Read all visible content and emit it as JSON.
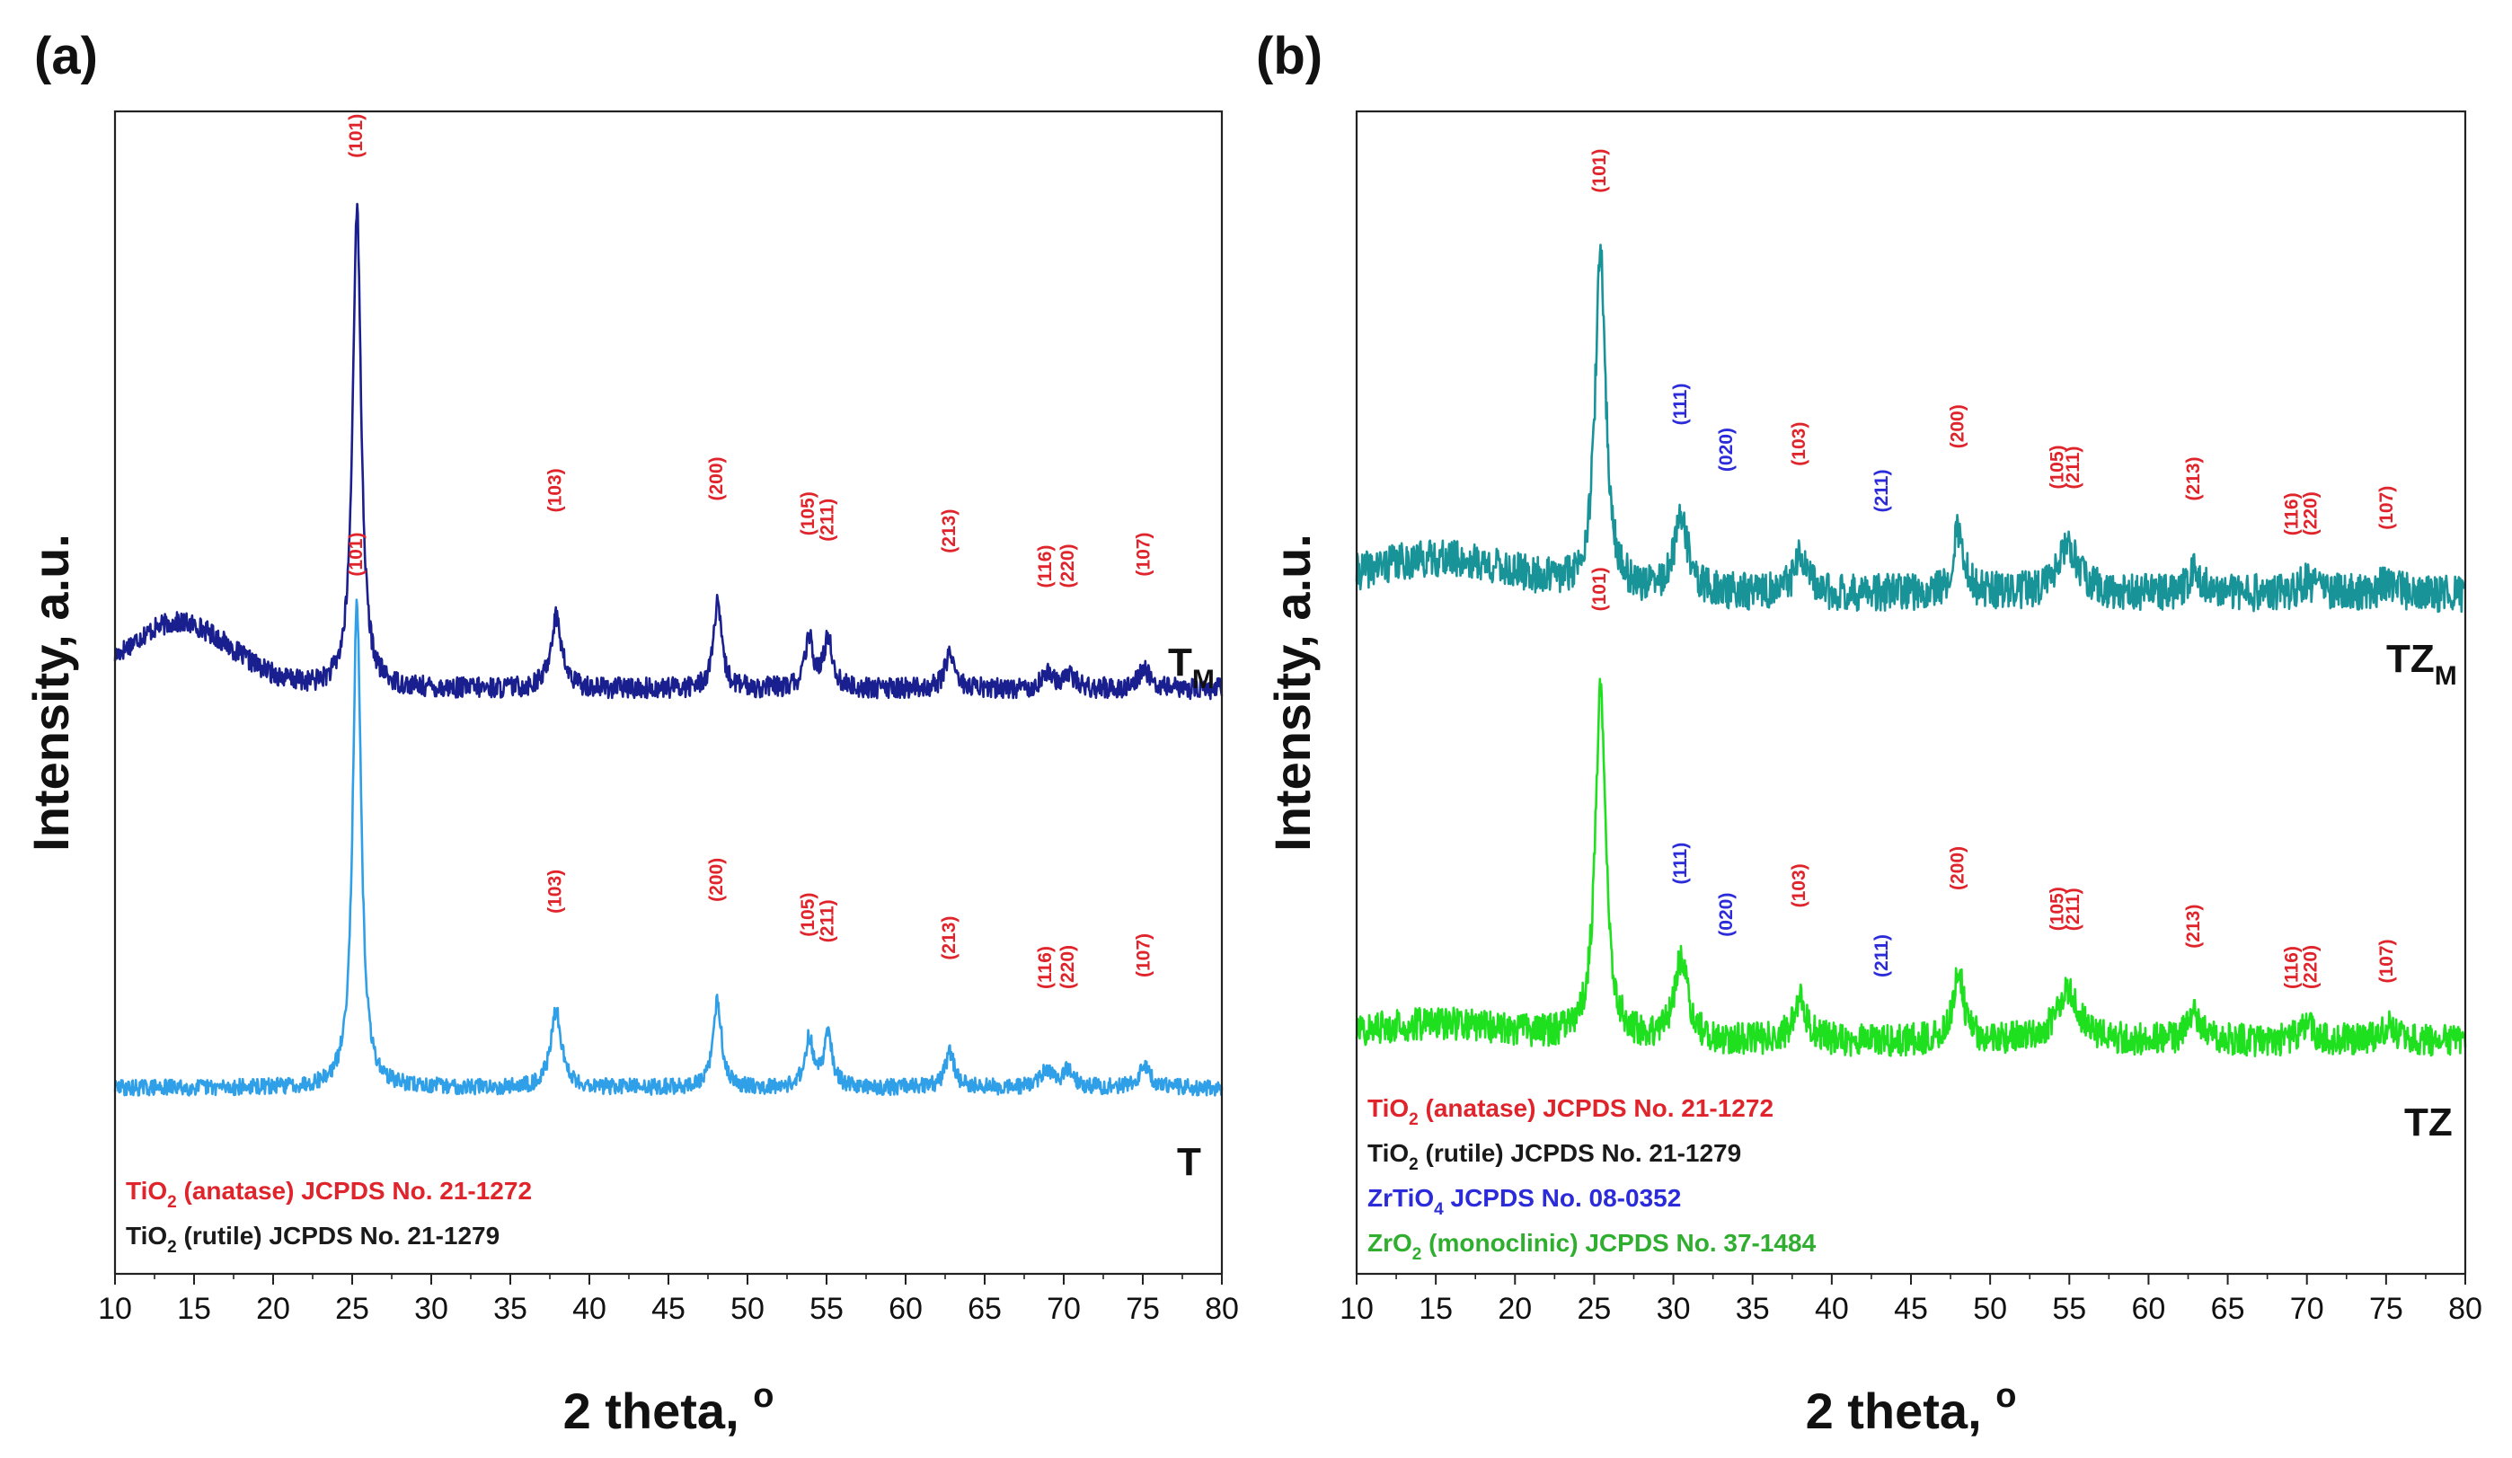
{
  "chart_data": [
    {
      "type": "line",
      "panel_label": "(a)",
      "xlabel": "2 theta, ",
      "xlabel_unit": "o",
      "ylabel": "Intensity, a.u.",
      "xlim": [
        10,
        80
      ],
      "ylim": [
        0,
        1
      ],
      "x_ticks": [
        10,
        15,
        20,
        25,
        30,
        35,
        40,
        45,
        50,
        55,
        60,
        65,
        70,
        75,
        80
      ],
      "y_ticks": [],
      "grid": false,
      "series": [
        {
          "name": "T",
          "label_main": "T",
          "label_sub": "M",
          "color": "#1a1f8f",
          "baseline": 0.503,
          "bump": {
            "center": 14,
            "width": 3.4,
            "height": 0.057
          },
          "noise": 0.009,
          "seed": 17,
          "peaks": [
            {
              "x": 25.3,
              "h": 0.415,
              "w": 0.32
            },
            {
              "x": 37.9,
              "h": 0.062,
              "w": 0.42
            },
            {
              "x": 48.1,
              "h": 0.072,
              "w": 0.32
            },
            {
              "x": 53.9,
              "h": 0.042,
              "w": 0.32
            },
            {
              "x": 55.1,
              "h": 0.044,
              "w": 0.32
            },
            {
              "x": 62.8,
              "h": 0.032,
              "w": 0.36
            },
            {
              "x": 68.9,
              "h": 0.013,
              "w": 0.42
            },
            {
              "x": 70.3,
              "h": 0.014,
              "w": 0.42
            },
            {
              "x": 75.1,
              "h": 0.017,
              "w": 0.42
            }
          ]
        },
        {
          "name": "T",
          "label_main": "T",
          "label_sub": "",
          "color": "#2f9fe8",
          "baseline": 0.16,
          "bump": {
            "center": 14,
            "width": 3,
            "height": 0.0
          },
          "noise": 0.007,
          "seed": 29,
          "peaks": [
            {
              "x": 25.3,
              "h": 0.415,
              "w": 0.32
            },
            {
              "x": 37.9,
              "h": 0.065,
              "w": 0.42
            },
            {
              "x": 48.1,
              "h": 0.075,
              "w": 0.32
            },
            {
              "x": 53.9,
              "h": 0.042,
              "w": 0.32
            },
            {
              "x": 55.1,
              "h": 0.044,
              "w": 0.32
            },
            {
              "x": 62.8,
              "h": 0.03,
              "w": 0.36
            },
            {
              "x": 68.9,
              "h": 0.015,
              "w": 0.42
            },
            {
              "x": 70.3,
              "h": 0.015,
              "w": 0.42
            },
            {
              "x": 75.1,
              "h": 0.018,
              "w": 0.42
            }
          ]
        }
      ],
      "annotations": [
        {
          "text": "(101)",
          "x": 25.3,
          "y": 0.96,
          "color": "#e0242b"
        },
        {
          "text": "(103)",
          "x": 37.9,
          "y": 0.655,
          "color": "#e0242b"
        },
        {
          "text": "(200)",
          "x": 48.1,
          "y": 0.665,
          "color": "#e0242b"
        },
        {
          "text": "(105)",
          "x": 53.9,
          "y": 0.635,
          "color": "#e0242b"
        },
        {
          "text": "(211)",
          "x": 55.1,
          "y": 0.63,
          "color": "#e0242b"
        },
        {
          "text": "(213)",
          "x": 62.8,
          "y": 0.62,
          "color": "#e0242b"
        },
        {
          "text": "(116)",
          "x": 68.9,
          "y": 0.59,
          "color": "#e0242b"
        },
        {
          "text": "(220)",
          "x": 70.3,
          "y": 0.59,
          "color": "#e0242b"
        },
        {
          "text": "(107)",
          "x": 75.1,
          "y": 0.6,
          "color": "#e0242b"
        },
        {
          "text": "(101)",
          "x": 25.3,
          "y": 0.6,
          "color": "#e0242b"
        },
        {
          "text": "(103)",
          "x": 37.9,
          "y": 0.31,
          "color": "#e0242b"
        },
        {
          "text": "(200)",
          "x": 48.1,
          "y": 0.32,
          "color": "#e0242b"
        },
        {
          "text": "(105)",
          "x": 53.9,
          "y": 0.29,
          "color": "#e0242b"
        },
        {
          "text": "(211)",
          "x": 55.1,
          "y": 0.285,
          "color": "#e0242b"
        },
        {
          "text": "(213)",
          "x": 62.8,
          "y": 0.27,
          "color": "#e0242b"
        },
        {
          "text": "(116)",
          "x": 68.9,
          "y": 0.245,
          "color": "#e0242b"
        },
        {
          "text": "(220)",
          "x": 70.3,
          "y": 0.245,
          "color": "#e0242b"
        },
        {
          "text": "(107)",
          "x": 75.1,
          "y": 0.255,
          "color": "#e0242b"
        }
      ],
      "legend": [
        {
          "pre": "TiO",
          "sub": "2",
          "post": " (anatase) JCPDS No. 21-1272",
          "color": "#e0242b"
        },
        {
          "pre": "TiO",
          "sub": "2",
          "post": " (rutile) JCPDS No. 21-1279",
          "color": "#1a1a1a"
        }
      ]
    },
    {
      "type": "line",
      "panel_label": "(b)",
      "xlabel": "2 theta, ",
      "xlabel_unit": "o",
      "ylabel": "Intensity, a.u.",
      "xlim": [
        10,
        80
      ],
      "ylim": [
        0,
        1
      ],
      "x_ticks": [
        10,
        15,
        20,
        25,
        30,
        35,
        40,
        45,
        50,
        55,
        60,
        65,
        70,
        75,
        80
      ],
      "y_ticks": [],
      "grid": false,
      "series": [
        {
          "name": "TZ",
          "label_main": "TZ",
          "label_sub": "M",
          "color": "#189499",
          "baseline": 0.585,
          "bump": {
            "center": 15,
            "width": 5,
            "height": 0.03
          },
          "noise": 0.016,
          "seed": 41,
          "peaks": [
            {
              "x": 25.4,
              "h": 0.29,
              "w": 0.4
            },
            {
              "x": 30.5,
              "h": 0.065,
              "w": 0.5
            },
            {
              "x": 38.0,
              "h": 0.03,
              "w": 0.5
            },
            {
              "x": 48.0,
              "h": 0.055,
              "w": 0.4
            },
            {
              "x": 54.9,
              "h": 0.04,
              "w": 0.8
            },
            {
              "x": 62.9,
              "h": 0.02,
              "w": 0.5
            },
            {
              "x": 70.0,
              "h": 0.01,
              "w": 0.6
            },
            {
              "x": 75.1,
              "h": 0.01,
              "w": 0.6
            }
          ]
        },
        {
          "name": "TZ",
          "label_main": "TZ",
          "label_sub": "",
          "color": "#1ee01e",
          "baseline": 0.2,
          "bump": {
            "center": 15,
            "width": 5,
            "height": 0.015
          },
          "noise": 0.014,
          "seed": 57,
          "peaks": [
            {
              "x": 25.4,
              "h": 0.3,
              "w": 0.4
            },
            {
              "x": 30.5,
              "h": 0.07,
              "w": 0.5
            },
            {
              "x": 38.0,
              "h": 0.035,
              "w": 0.5
            },
            {
              "x": 48.0,
              "h": 0.06,
              "w": 0.4
            },
            {
              "x": 54.9,
              "h": 0.045,
              "w": 0.8
            },
            {
              "x": 62.9,
              "h": 0.022,
              "w": 0.5
            },
            {
              "x": 70.0,
              "h": 0.012,
              "w": 0.6
            },
            {
              "x": 75.1,
              "h": 0.012,
              "w": 0.6
            }
          ]
        }
      ],
      "annotations": [
        {
          "text": "(101)",
          "x": 25.4,
          "y": 0.93,
          "color": "#e0242b"
        },
        {
          "text": "(111)",
          "x": 30.5,
          "y": 0.73,
          "color": "#2b2bd9"
        },
        {
          "text": "(020)",
          "x": 33.4,
          "y": 0.69,
          "color": "#2b2bd9"
        },
        {
          "text": "(103)",
          "x": 38.0,
          "y": 0.695,
          "color": "#e0242b"
        },
        {
          "text": "(211)",
          "x": 43.2,
          "y": 0.655,
          "color": "#2b2bd9"
        },
        {
          "text": "(200)",
          "x": 48.0,
          "y": 0.71,
          "color": "#e0242b"
        },
        {
          "text": "(105)",
          "x": 54.3,
          "y": 0.675,
          "color": "#e0242b"
        },
        {
          "text": "(211)",
          "x": 55.3,
          "y": 0.675,
          "color": "#e0242b"
        },
        {
          "text": "(213)",
          "x": 62.9,
          "y": 0.665,
          "color": "#e0242b"
        },
        {
          "text": "(116)",
          "x": 69.1,
          "y": 0.635,
          "color": "#e0242b"
        },
        {
          "text": "(220)",
          "x": 70.3,
          "y": 0.635,
          "color": "#e0242b"
        },
        {
          "text": "(107)",
          "x": 75.1,
          "y": 0.64,
          "color": "#e0242b"
        },
        {
          "text": "(101)",
          "x": 25.4,
          "y": 0.57,
          "color": "#e0242b"
        },
        {
          "text": "(111)",
          "x": 30.5,
          "y": 0.335,
          "color": "#2b2bd9"
        },
        {
          "text": "(020)",
          "x": 33.4,
          "y": 0.29,
          "color": "#2b2bd9"
        },
        {
          "text": "(103)",
          "x": 38.0,
          "y": 0.315,
          "color": "#e0242b"
        },
        {
          "text": "(211)",
          "x": 43.2,
          "y": 0.255,
          "color": "#2b2bd9"
        },
        {
          "text": "(200)",
          "x": 48.0,
          "y": 0.33,
          "color": "#e0242b"
        },
        {
          "text": "(105)",
          "x": 54.3,
          "y": 0.295,
          "color": "#e0242b"
        },
        {
          "text": "(211)",
          "x": 55.3,
          "y": 0.295,
          "color": "#e0242b"
        },
        {
          "text": "(213)",
          "x": 62.9,
          "y": 0.28,
          "color": "#e0242b"
        },
        {
          "text": "(116)",
          "x": 69.1,
          "y": 0.245,
          "color": "#e0242b"
        },
        {
          "text": "(220)",
          "x": 70.3,
          "y": 0.245,
          "color": "#e0242b"
        },
        {
          "text": "(107)",
          "x": 75.1,
          "y": 0.25,
          "color": "#e0242b"
        }
      ],
      "legend": [
        {
          "pre": "TiO",
          "sub": "2",
          "post": " (anatase) JCPDS No. 21-1272",
          "color": "#e0242b"
        },
        {
          "pre": "TiO",
          "sub": "2",
          "post": " (rutile) JCPDS No. 21-1279",
          "color": "#1a1a1a"
        },
        {
          "pre": "ZrTiO",
          "sub": "4",
          "post": " JCPDS No. 08-0352",
          "color": "#2b2bd9"
        },
        {
          "pre": "ZrO",
          "sub": "2",
          "post": " (monoclinic) JCPDS No. 37-1484",
          "color": "#2fae2f"
        }
      ]
    }
  ]
}
